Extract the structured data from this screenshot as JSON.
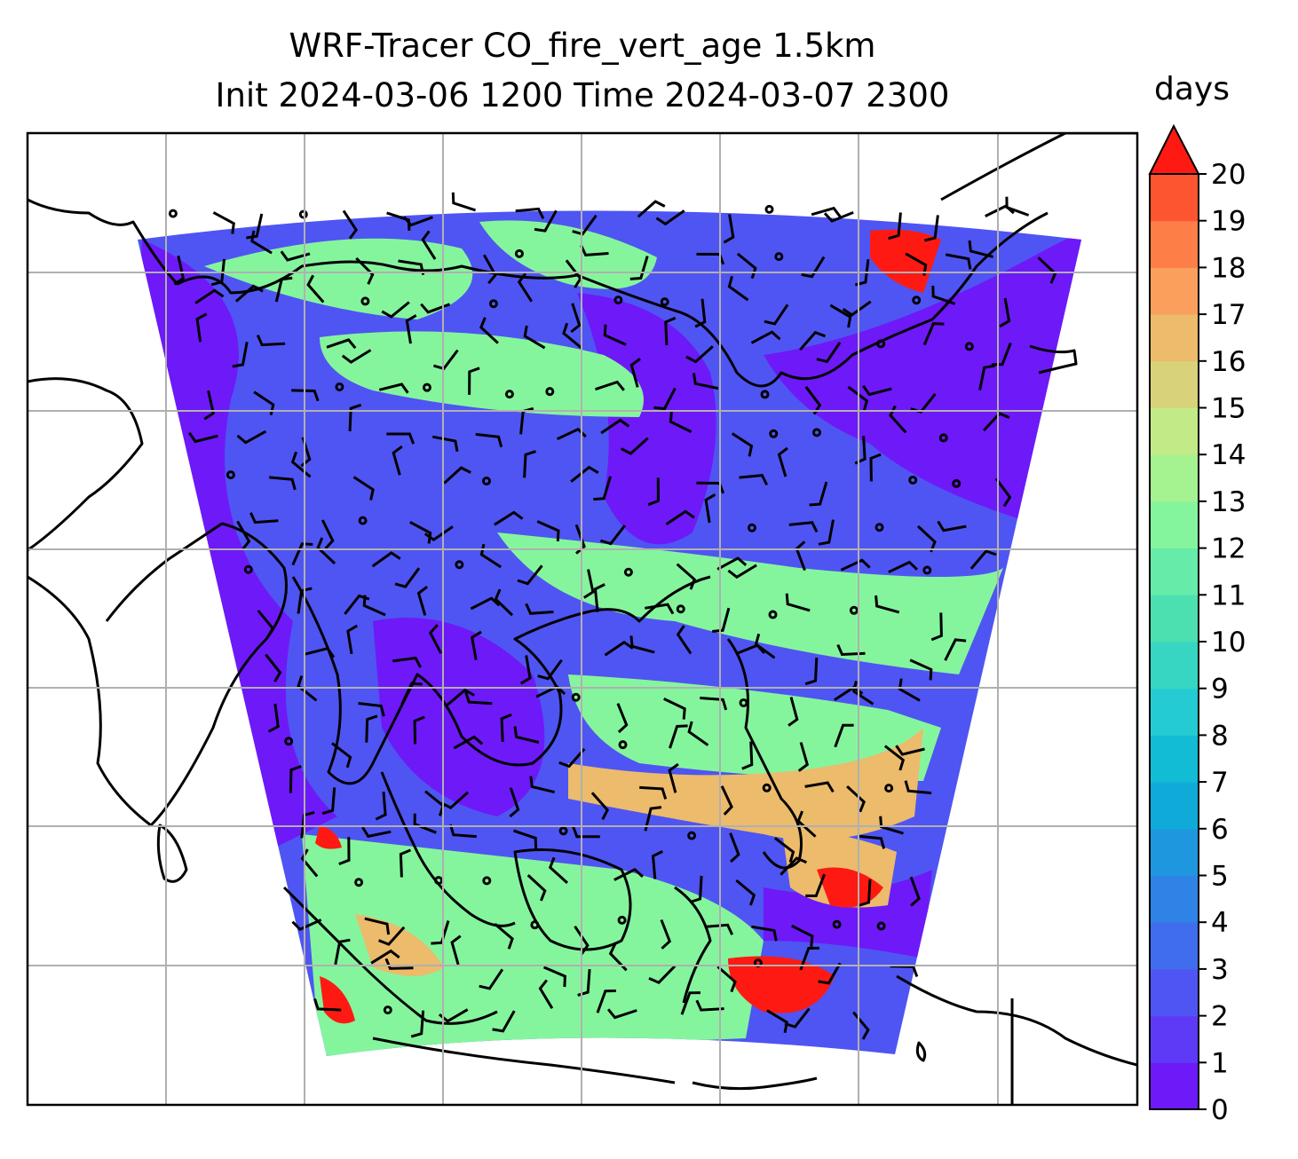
{
  "title": {
    "line1": "WRF-Tracer CO_fire_vert_age 1.5km",
    "line2": "Init 2024-03-06 1200 Time 2024-03-07 2300"
  },
  "colorbar": {
    "label": "days",
    "min": 0,
    "max": 20,
    "ticks": [
      "0",
      "1",
      "2",
      "3",
      "4",
      "5",
      "6",
      "7",
      "8",
      "9",
      "10",
      "11",
      "12",
      "13",
      "14",
      "15",
      "16",
      "17",
      "18",
      "19",
      "20"
    ],
    "extend": "max",
    "colors": [
      "#6e19f8",
      "#5f3af6",
      "#4f55f2",
      "#3f6ded",
      "#2f83e6",
      "#1e97de",
      "#10aad8",
      "#12bcd4",
      "#24cbd2",
      "#37d6c2",
      "#4cdfb0",
      "#66eca8",
      "#85f59d",
      "#a4f290",
      "#c2ea86",
      "#d8d37a",
      "#ecbb6c",
      "#fba05c",
      "#fd7f47",
      "#fd5530"
    ],
    "over_color": "#fe1a12"
  },
  "map": {
    "grid": "on",
    "field_colors": {
      "background_age": "#4f55f2",
      "young_air": "#6e19f8",
      "mid_age": "#85f59d",
      "old_air": "#ecbb6c",
      "very_old": "#fe1a12"
    }
  }
}
